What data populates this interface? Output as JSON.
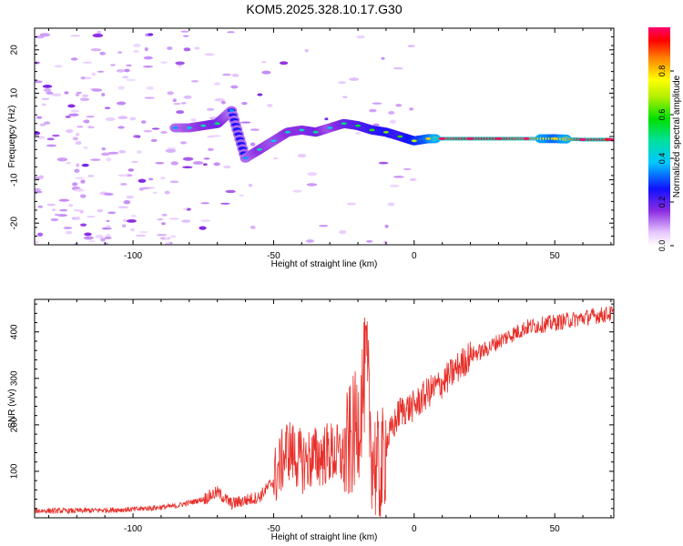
{
  "title": "KOM5.2025.328.10.17.G30",
  "chart_data": [
    {
      "type": "heatmap",
      "name": "spectrogram",
      "xlabel": "Height of straight line (km)",
      "ylabel": "Frequency (Hz)",
      "xlim": [
        -135,
        71
      ],
      "ylim": [
        -25,
        25
      ],
      "xticks": [
        -100,
        -50,
        0,
        50
      ],
      "yticks": [
        -20,
        -10,
        0,
        10,
        20
      ],
      "colorbar": {
        "label": "Normalized spectral amplitude",
        "ticks": [
          0.0,
          0.2,
          0.4,
          0.6,
          0.8
        ],
        "range": [
          0,
          1
        ]
      },
      "signal_track": [
        {
          "x": -85,
          "freq": 2,
          "amp": 0.25
        },
        {
          "x": -80,
          "freq": 2,
          "amp": 0.3
        },
        {
          "x": -75,
          "freq": 2.5,
          "amp": 0.35
        },
        {
          "x": -70,
          "freq": 3,
          "amp": 0.4
        },
        {
          "x": -65,
          "freq": 6,
          "amp": 0.25
        },
        {
          "x": -60,
          "freq": -5,
          "amp": 0.25
        },
        {
          "x": -55,
          "freq": -3,
          "amp": 0.35
        },
        {
          "x": -50,
          "freq": -1,
          "amp": 0.3
        },
        {
          "x": -45,
          "freq": 1,
          "amp": 0.35
        },
        {
          "x": -40,
          "freq": 1.5,
          "amp": 0.35
        },
        {
          "x": -35,
          "freq": 1,
          "amp": 0.4
        },
        {
          "x": -30,
          "freq": 2,
          "amp": 0.3
        },
        {
          "x": -25,
          "freq": 3,
          "amp": 0.4
        },
        {
          "x": -20,
          "freq": 2.5,
          "amp": 0.45
        },
        {
          "x": -15,
          "freq": 1.5,
          "amp": 0.5
        },
        {
          "x": -10,
          "freq": 1,
          "amp": 0.55
        },
        {
          "x": -5,
          "freq": 0,
          "amp": 0.5
        },
        {
          "x": 0,
          "freq": -1,
          "amp": 0.6
        },
        {
          "x": 5,
          "freq": -0.5,
          "amp": 0.7
        },
        {
          "x": 10,
          "freq": -0.5,
          "amp": 0.9
        },
        {
          "x": 20,
          "freq": -0.5,
          "amp": 0.95
        },
        {
          "x": 30,
          "freq": -0.5,
          "amp": 0.95
        },
        {
          "x": 40,
          "freq": -0.5,
          "amp": 0.9
        },
        {
          "x": 50,
          "freq": -0.5,
          "amp": 0.7
        },
        {
          "x": 60,
          "freq": -0.7,
          "amp": 0.95
        },
        {
          "x": 70,
          "freq": -0.7,
          "amp": 0.95
        }
      ]
    },
    {
      "type": "line",
      "name": "snr",
      "xlabel": "Height of straight line (km)",
      "ylabel": "SNR (v/v)",
      "xlim": [
        -135,
        71
      ],
      "ylim": [
        0,
        470
      ],
      "xticks": [
        -100,
        -50,
        0,
        50
      ],
      "yticks": [
        100,
        200,
        300,
        400
      ],
      "color": "#e8302a",
      "series": [
        {
          "name": "SNR",
          "x": [
            -135,
            -120,
            -100,
            -85,
            -75,
            -70,
            -65,
            -55,
            -50,
            -45,
            -40,
            -35,
            -30,
            -25,
            -20,
            -17,
            -15,
            -12,
            -10,
            -5,
            0,
            5,
            10,
            15,
            20,
            25,
            30,
            35,
            40,
            45,
            50,
            55,
            60,
            65,
            71
          ],
          "y": [
            15,
            15,
            18,
            25,
            40,
            55,
            30,
            45,
            80,
            150,
            120,
            130,
            140,
            130,
            200,
            330,
            140,
            80,
            160,
            230,
            240,
            270,
            290,
            320,
            350,
            360,
            380,
            395,
            410,
            415,
            420,
            425,
            430,
            435,
            440
          ]
        }
      ]
    }
  ]
}
